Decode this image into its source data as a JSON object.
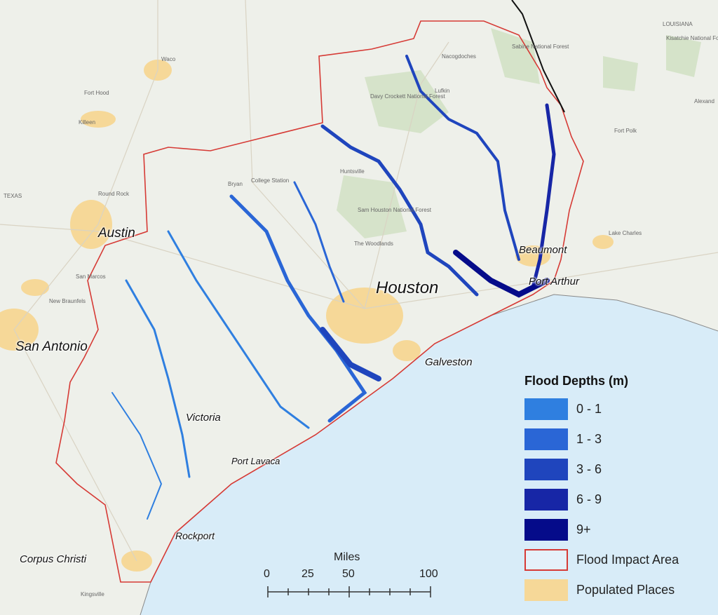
{
  "legend": {
    "title": "Flood Depths (m)",
    "items": [
      {
        "label": "0 - 1",
        "color": "#2f7fe0"
      },
      {
        "label": "1 - 3",
        "color": "#2a66d6"
      },
      {
        "label": "3 - 6",
        "color": "#1f45bd"
      },
      {
        "label": "6 - 9",
        "color": "#1726a6"
      },
      {
        "label": "9+",
        "color": "#050b8a"
      },
      {
        "label": "Flood Impact Area",
        "color": "#d63a35"
      },
      {
        "label": "Populated Places",
        "color": "#f6d898"
      }
    ]
  },
  "scale_bar": {
    "unit": "Miles",
    "ticks": [
      "0",
      "25",
      "50",
      "100"
    ]
  },
  "cities": {
    "houston": "Houston",
    "austin": "Austin",
    "san_antonio": "San Antonio",
    "beaumont": "Beaumont",
    "port_arthur": "Port Arthur",
    "galveston": "Galveston",
    "victoria": "Victoria",
    "port_lavaca": "Port Lavaca",
    "rockport": "Rockport",
    "corpus_christi": "Corpus Christi"
  },
  "basemap_labels": {
    "waco": "Waco",
    "fort_hood": "Fort Hood",
    "killeen": "Killeen",
    "round_rock": "Round Rock",
    "texas": "TEXAS",
    "san_marcos": "San Marcos",
    "new_braunfels": "New Braunfels",
    "bryan": "Bryan",
    "college_station": "College Station",
    "huntsville": "Huntsville",
    "lufkin": "Lufkin",
    "nacogdoches": "Nacogdoches",
    "the_woodlands": "The Woodlands",
    "lake_charles": "Lake Charles",
    "louisiana": "LOUISIANA",
    "fort_polk": "Fort Polk",
    "alexandria": "Alexand",
    "kingsville": "Kingsville",
    "davy_crockett": "Davy Crockett National Forest",
    "sam_houston": "Sam Houston National Forest",
    "sabine": "Sabine National Forest",
    "kisatchie": "Kisatchie National Forest"
  },
  "colors": {
    "land": "#eef0ea",
    "water": "#d8ecf8",
    "boundary": "#d63a35",
    "state_line": "#111111",
    "populated": "#f6d898"
  }
}
